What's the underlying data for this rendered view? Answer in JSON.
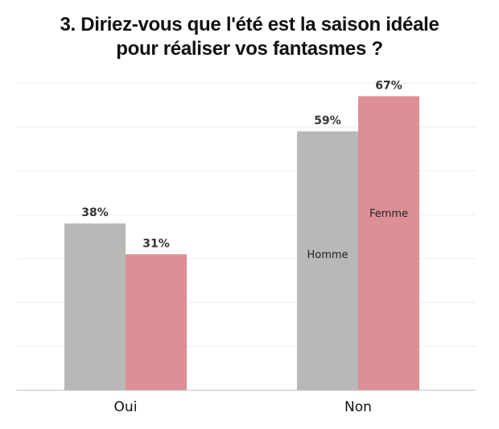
{
  "chart_data": {
    "type": "bar",
    "title_lines": [
      "3. Diriez-vous que l'été est la saison idéale",
      "pour réaliser vos fantasmes ?"
    ],
    "categories": [
      "Oui",
      "Non"
    ],
    "series": [
      {
        "name": "Homme",
        "values": [
          38,
          59
        ],
        "labels": [
          "38%",
          "59%"
        ],
        "color": "#b8b8b6"
      },
      {
        "name": "Femme",
        "values": [
          31,
          67
        ],
        "labels": [
          "31%",
          "67%"
        ],
        "color": "#dc8f95"
      }
    ],
    "ylim": [
      0,
      70
    ],
    "grid": true,
    "legend": "in-bar"
  }
}
